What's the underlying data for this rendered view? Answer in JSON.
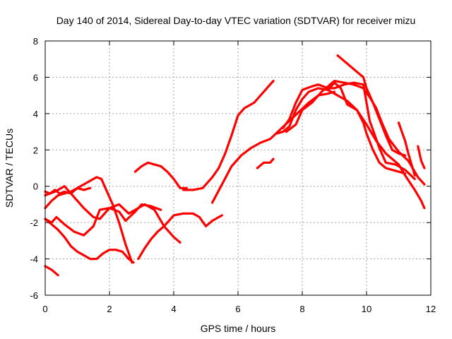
{
  "chart_data": {
    "type": "scatter",
    "title": "Day 140 of 2014, Sidereal Day-to-day VTEC variation (SDTVAR) for receiver mizu",
    "xlabel": "GPS time / hours",
    "ylabel": "SDTVAR / TECUs",
    "xlim": [
      0,
      12
    ],
    "ylim": [
      -6,
      8
    ],
    "xticks": [
      0,
      2,
      4,
      6,
      8,
      10,
      12
    ],
    "yticks": [
      -6,
      -4,
      -2,
      0,
      2,
      4,
      6,
      8
    ],
    "grid": true,
    "marker": "+",
    "color": "#ff0000",
    "series": [
      {
        "x": [
          0.0,
          0.2,
          0.4
        ],
        "y": [
          -4.4,
          -4.6,
          -4.9
        ]
      },
      {
        "x": [
          0.0,
          0.15,
          0.3,
          0.45,
          0.6,
          0.8,
          1.0,
          1.2,
          1.4
        ],
        "y": [
          -0.3,
          -0.4,
          -0.2,
          -0.4,
          -0.3,
          -0.4,
          -0.1,
          -0.2,
          -0.1
        ]
      },
      {
        "x": [
          0.0,
          0.2,
          0.4,
          0.6,
          0.8,
          1.0,
          1.2,
          1.4,
          1.6,
          1.75,
          1.9,
          2.1,
          2.3,
          2.5,
          2.7
        ],
        "y": [
          -1.2,
          -0.8,
          -0.5,
          -0.4,
          -0.3,
          -0.1,
          0.1,
          0.3,
          0.5,
          0.4,
          -0.2,
          -1.0,
          -2.0,
          -3.2,
          -4.2
        ]
      },
      {
        "x": [
          0.0,
          0.3,
          0.6,
          0.9,
          1.2,
          1.5,
          1.7,
          2.0,
          2.3,
          2.6,
          2.8,
          3.1,
          3.4,
          3.7,
          4.0,
          4.2
        ],
        "y": [
          -0.5,
          -0.3,
          0.0,
          -0.6,
          -1.2,
          -1.7,
          -1.8,
          -1.2,
          -1.0,
          -1.5,
          -1.3,
          -1.0,
          -1.3,
          -2.2,
          -2.8,
          -3.1
        ]
      },
      {
        "x": [
          0.0,
          0.2,
          0.35,
          0.6,
          0.9,
          1.2,
          1.5,
          1.7,
          2.0,
          2.3,
          2.5,
          2.8,
          3.0,
          3.3,
          3.6
        ],
        "y": [
          -1.8,
          -2.0,
          -1.7,
          -2.1,
          -2.5,
          -2.7,
          -2.2,
          -1.3,
          -1.2,
          -1.4,
          -1.9,
          -1.4,
          -1.0,
          -1.1,
          -1.3
        ]
      },
      {
        "x": [
          0.0,
          0.2,
          0.4,
          0.6,
          0.8,
          1.0,
          1.2,
          1.4,
          1.6,
          1.8,
          2.0,
          2.2,
          2.4,
          2.6,
          2.75
        ],
        "y": [
          -1.8,
          -2.1,
          -2.4,
          -2.8,
          -3.3,
          -3.6,
          -3.8,
          -4.0,
          -4.0,
          -3.7,
          -3.5,
          -3.5,
          -3.6,
          -4.0,
          -4.2
        ]
      },
      {
        "x": [
          2.9,
          3.1,
          3.3,
          3.5,
          3.7,
          4.0,
          4.3,
          4.6,
          4.8,
          5.0,
          5.2,
          5.5
        ],
        "y": [
          -4.0,
          -3.4,
          -2.9,
          -2.5,
          -2.2,
          -1.6,
          -1.5,
          -1.5,
          -1.7,
          -2.2,
          -1.9,
          -1.6
        ]
      },
      {
        "x": [
          2.8,
          3.0,
          3.2,
          3.4,
          3.6,
          3.8,
          4.0,
          4.2,
          4.4
        ],
        "y": [
          0.8,
          1.1,
          1.3,
          1.2,
          1.1,
          0.8,
          0.4,
          -0.1,
          -0.1
        ]
      },
      {
        "x": [
          4.3,
          4.6,
          4.9,
          5.2,
          5.4,
          5.6,
          5.8,
          6.0,
          6.2,
          6.5,
          6.8,
          7.0,
          7.1
        ],
        "y": [
          -0.2,
          -0.2,
          -0.1,
          0.5,
          1.0,
          1.8,
          2.8,
          3.9,
          4.3,
          4.6,
          5.2,
          5.6,
          5.8
        ]
      },
      {
        "x": [
          5.2,
          5.5,
          5.8,
          6.1,
          6.4,
          6.7,
          7.0,
          7.3,
          7.6,
          7.9,
          8.2,
          8.5,
          8.8,
          9.0
        ],
        "y": [
          -0.9,
          0.1,
          1.1,
          1.7,
          2.1,
          2.4,
          2.6,
          3.1,
          3.6,
          4.1,
          4.6,
          5.0,
          5.1,
          5.2
        ]
      },
      {
        "x": [
          6.6,
          6.8,
          7.0,
          7.1
        ],
        "y": [
          1.0,
          1.3,
          1.3,
          1.5
        ]
      },
      {
        "x": [
          7.2,
          7.4,
          7.6,
          7.8,
          8.0,
          8.2,
          8.5,
          8.8,
          9.1,
          9.4,
          9.7,
          10.0,
          10.3,
          10.6,
          10.8,
          11.0,
          11.2,
          11.5,
          11.7,
          11.8
        ],
        "y": [
          2.9,
          3.0,
          3.3,
          4.2,
          4.8,
          5.2,
          5.4,
          5.3,
          5.0,
          4.7,
          4.2,
          3.4,
          2.5,
          1.8,
          1.5,
          1.2,
          0.6,
          -0.2,
          -0.8,
          -1.2
        ]
      },
      {
        "x": [
          7.4,
          7.6,
          7.8,
          8.0,
          8.3,
          8.5,
          8.8,
          9.0,
          9.3,
          9.6,
          9.9,
          10.1,
          10.4,
          10.6,
          10.9,
          11.2,
          11.5
        ],
        "y": [
          3.2,
          3.7,
          4.6,
          5.3,
          5.5,
          5.6,
          5.4,
          5.4,
          5.6,
          5.7,
          5.6,
          3.6,
          2.1,
          1.3,
          1.2,
          0.9,
          0.4
        ]
      },
      {
        "x": [
          7.5,
          7.8,
          8.0,
          8.3,
          8.6,
          8.8,
          9.0,
          9.3,
          9.6,
          9.9,
          10.1,
          10.3,
          10.5,
          10.7,
          11.0,
          11.3,
          11.6,
          11.8
        ],
        "y": [
          3.0,
          3.4,
          4.2,
          4.6,
          5.2,
          5.5,
          5.8,
          5.7,
          5.6,
          5.4,
          4.9,
          4.3,
          3.4,
          2.6,
          1.9,
          1.4,
          0.5,
          0.1
        ]
      },
      {
        "x": [
          8.8,
          9.0,
          9.2,
          9.4,
          9.7,
          9.9,
          10.0,
          10.2,
          10.4,
          10.6,
          10.8,
          11.0,
          11.2
        ],
        "y": [
          5.3,
          5.7,
          5.4,
          4.5,
          4.2,
          3.5,
          2.9,
          2.0,
          1.3,
          1.0,
          0.9,
          0.8,
          0.7
        ]
      },
      {
        "x": [
          9.1,
          9.3,
          9.5,
          9.7,
          9.9,
          10.0,
          10.2,
          10.4,
          10.6,
          10.8,
          11.0,
          11.2
        ],
        "y": [
          7.2,
          6.9,
          6.6,
          6.3,
          6.0,
          5.4,
          4.6,
          3.7,
          2.8,
          2.0,
          1.8,
          1.7
        ]
      },
      {
        "x": [
          11.0,
          11.1,
          11.2,
          11.3,
          11.4,
          11.5
        ],
        "y": [
          3.5,
          3.0,
          2.5,
          1.8,
          1.2,
          0.6
        ]
      },
      {
        "x": [
          11.6,
          11.7,
          11.8
        ],
        "y": [
          2.2,
          1.4,
          1.0
        ]
      }
    ]
  }
}
